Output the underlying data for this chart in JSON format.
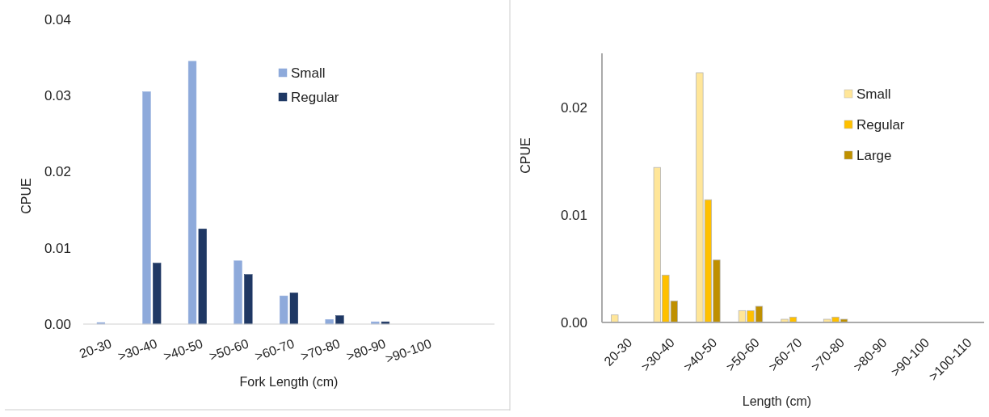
{
  "chart_data": [
    {
      "type": "bar",
      "xlabel": "Fork Length (cm)",
      "ylabel": "CPUE",
      "categories": [
        "20-30",
        ">30-40",
        ">40-50",
        ">50-60",
        ">60-70",
        ">70-80",
        ">80-90",
        ">90-100",
        null
      ],
      "series": [
        {
          "name": "Small",
          "color": "#8eaadb",
          "values": [
            0.0002,
            0.0305,
            0.0345,
            0.0083,
            0.0037,
            0.0006,
            0.0003,
            0,
            0
          ]
        },
        {
          "name": "Regular",
          "color": "#1f3864",
          "values": [
            0,
            0.008,
            0.0125,
            0.0065,
            0.0041,
            0.0011,
            0.0003,
            0,
            0
          ]
        }
      ],
      "ylim": [
        0,
        0.04
      ],
      "yticks": [
        {
          "value": 0,
          "label": "0.00"
        },
        {
          "value": 0.01,
          "label": "0.01"
        },
        {
          "value": 0.02,
          "label": "0.02"
        },
        {
          "value": 0.03,
          "label": "0.03"
        },
        {
          "value": 0.04,
          "label": "0.04"
        }
      ],
      "legend": "top right"
    },
    {
      "type": "bar",
      "xlabel": "Length  (cm)",
      "ylabel": "CPUE",
      "categories": [
        "20-30",
        ">30-40",
        ">40-50",
        ">50-60",
        ">60-70",
        ">70-80",
        ">80-90",
        ">90-100",
        ">100-110"
      ],
      "series": [
        {
          "name": "Small",
          "color": "#ffe699",
          "values": [
            0.0007,
            0.0144,
            0.0232,
            0.0011,
            0.0003,
            0.0003,
            0,
            0,
            0
          ]
        },
        {
          "name": "Regular",
          "color": "#ffc000",
          "values": [
            0,
            0.0044,
            0.0114,
            0.0011,
            0.0005,
            0.0005,
            0,
            0,
            0
          ]
        },
        {
          "name": "Large",
          "color": "#bf9000",
          "values": [
            0,
            0.002,
            0.0058,
            0.0015,
            0,
            0.0003,
            0,
            0,
            0
          ]
        }
      ],
      "ylim": [
        0,
        0.025
      ],
      "yticks": [
        {
          "value": 0,
          "label": "0.00"
        },
        {
          "value": 0.01,
          "label": "0.01"
        },
        {
          "value": 0.02,
          "label": "0.02"
        }
      ],
      "legend": "top right"
    }
  ]
}
